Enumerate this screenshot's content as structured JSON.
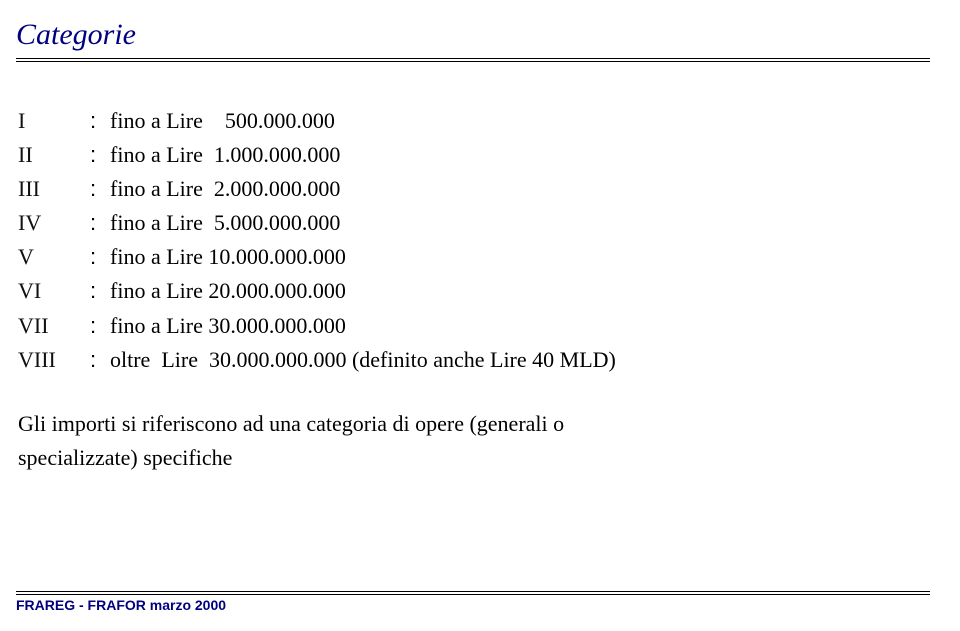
{
  "title": "Categorie",
  "rows": [
    {
      "label": "I",
      "text": "fino a Lire    500.000.000"
    },
    {
      "label": "II",
      "text": "fino a Lire  1.000.000.000"
    },
    {
      "label": "III",
      "text": "fino a Lire  2.000.000.000"
    },
    {
      "label": "IV",
      "text": "fino a Lire  5.000.000.000"
    },
    {
      "label": "V",
      "text": "fino a Lire 10.000.000.000"
    },
    {
      "label": "VI",
      "text": "fino a Lire 20.000.000.000"
    },
    {
      "label": "VII",
      "text": "fino a Lire 30.000.000.000"
    },
    {
      "label": "VIII",
      "text": "oltre  Lire  30.000.000.000 (definito anche Lire 40 MLD)"
    }
  ],
  "note_line1": "Gli  importi si riferiscono ad una categoria di opere (generali o",
  "note_line2": "specializzate) specifiche",
  "footer": "FRAREG - FRAFOR marzo 2000",
  "colors": {
    "title_color": "#000080",
    "text_color": "#000000",
    "line_color": "#000000",
    "footer_color": "#000080",
    "background": "#ffffff"
  },
  "typography": {
    "title_fontsize": 30,
    "body_fontsize": 22,
    "footer_fontsize": 14,
    "title_style": "italic",
    "body_family": "serif"
  }
}
